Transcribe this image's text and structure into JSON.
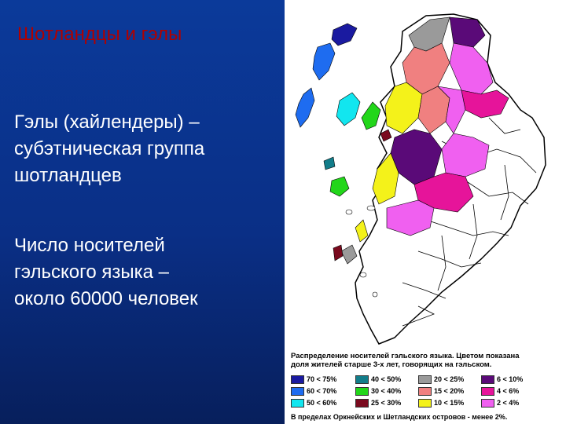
{
  "slide": {
    "title": "Шотландцы и гэлы",
    "paragraph1": [
      "Гэлы (хайлендеры) –",
      "субэтническая группа",
      "шотландцев"
    ],
    "paragraph2": [
      "Число носителей",
      "гэльского языка –",
      "около 60000 человек"
    ]
  },
  "legend": {
    "title_lines": [
      "Распределение носителей гэльского языка. Цветом показана",
      "доля жителей старше 3-х лет, говорящих на гэльском."
    ],
    "items": [
      {
        "label": "70 < 75%",
        "color": "#1a1aa0"
      },
      {
        "label": "60 < 70%",
        "color": "#1e6cf0"
      },
      {
        "label": "50 < 60%",
        "color": "#12e6ef"
      },
      {
        "label": "40 < 50%",
        "color": "#127d8a"
      },
      {
        "label": "30 < 40%",
        "color": "#22d61a"
      },
      {
        "label": "25 < 30%",
        "color": "#7a0a1e"
      },
      {
        "label": "20 < 25%",
        "color": "#9a9a9a"
      },
      {
        "label": "15 < 20%",
        "color": "#f08080"
      },
      {
        "label": "10 < 15%",
        "color": "#f4f21a"
      },
      {
        "label": "6 < 10%",
        "color": "#5a0a78"
      },
      {
        "label": "4 < 6%",
        "color": "#e6149a"
      },
      {
        "label": "2 < 4%",
        "color": "#f060f0"
      }
    ],
    "footnote": "В пределах Оркнейских и Шетландских островов - менее 2%."
  }
}
